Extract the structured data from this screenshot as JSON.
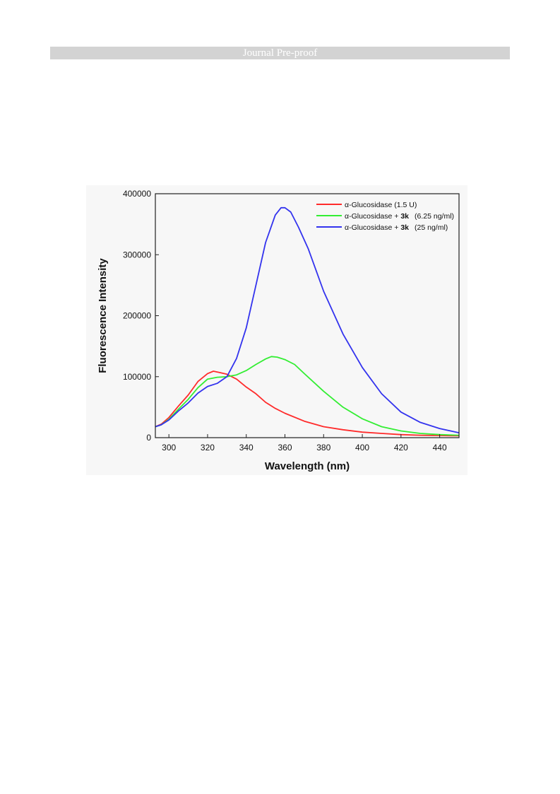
{
  "header": {
    "banner_text": "Journal Pre-proof"
  },
  "chart_data": {
    "type": "line",
    "xlabel": "Wavelength (nm)",
    "ylabel": "Fluorescence Intensity",
    "xlim": [
      293,
      450
    ],
    "ylim": [
      0,
      400000
    ],
    "x_ticks": [
      300,
      320,
      340,
      360,
      380,
      400,
      420,
      440
    ],
    "y_ticks": [
      0,
      100000,
      200000,
      300000,
      400000
    ],
    "grid": false,
    "legend_position": "top-right",
    "series": [
      {
        "name": "α-Glucosidase (1.5 U)",
        "legend_parts": [
          "α-Glucosidase (1.5 U)"
        ],
        "color": "#ff2b2b",
        "x": [
          293,
          296,
          300,
          305,
          310,
          315,
          320,
          323,
          326,
          330,
          335,
          340,
          345,
          350,
          355,
          360,
          370,
          380,
          390,
          400,
          410,
          420,
          430,
          440,
          450
        ],
        "y": [
          18000,
          22000,
          33000,
          52000,
          70000,
          92000,
          105000,
          109000,
          107000,
          104000,
          96000,
          83000,
          72000,
          58000,
          48000,
          40000,
          27000,
          18000,
          13000,
          9000,
          7000,
          5000,
          4000,
          3500,
          3000
        ]
      },
      {
        "name": "α-Glucosidase + 3k (6.25 ng/ml)",
        "legend_parts": [
          "α-Glucosidase + ",
          "3k",
          "(6.25 ng/ml)"
        ],
        "color": "#33ee33",
        "x": [
          293,
          296,
          300,
          305,
          310,
          315,
          320,
          325,
          330,
          335,
          340,
          345,
          350,
          353,
          356,
          360,
          365,
          370,
          380,
          390,
          400,
          410,
          420,
          430,
          440,
          450
        ],
        "y": [
          18000,
          21000,
          30000,
          47000,
          63000,
          82000,
          96000,
          99000,
          100000,
          103000,
          110000,
          120000,
          129000,
          133000,
          132000,
          128000,
          120000,
          105000,
          76000,
          50000,
          31000,
          18000,
          11000,
          7000,
          5000,
          4000
        ]
      },
      {
        "name": "α-Glucosidase + 3k (25 ng/ml)",
        "legend_parts": [
          "α-Glucosidase + ",
          "3k",
          "(25 ng/ml)"
        ],
        "color": "#3333ee",
        "x": [
          293,
          296,
          300,
          305,
          310,
          315,
          320,
          325,
          330,
          335,
          340,
          345,
          350,
          355,
          358,
          360,
          363,
          367,
          372,
          380,
          390,
          400,
          410,
          420,
          430,
          440,
          450
        ],
        "y": [
          18000,
          21000,
          29000,
          44000,
          57000,
          73000,
          84000,
          89000,
          100000,
          130000,
          180000,
          250000,
          320000,
          365000,
          377000,
          377000,
          370000,
          345000,
          310000,
          240000,
          170000,
          115000,
          72000,
          42000,
          25000,
          15000,
          8000
        ]
      }
    ]
  }
}
